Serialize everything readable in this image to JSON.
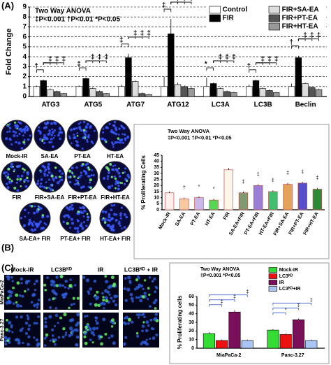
{
  "panel_labels": [
    "(A)",
    "(B)",
    "(C)"
  ],
  "chart_data": [
    {
      "type": "grouped_bar",
      "ylabel": "Fold Change",
      "annotation_title": "Two Way ANOVA",
      "annotation": "‡P<0.001 †P<0.01 *P<0.05",
      "categories": [
        "ATG3",
        "ATG5",
        "ATG7",
        "ATG12",
        "LC3A",
        "LC3B",
        "Beclin"
      ],
      "series": [
        {
          "name": "Control",
          "color": "#ffffff",
          "values": [
            1,
            1,
            1,
            1,
            1,
            1,
            1
          ],
          "errors": [
            0.1,
            0.1,
            0.2,
            1.0,
            0.9,
            0.2,
            0.3
          ]
        },
        {
          "name": "FIR",
          "color": "#000000",
          "values": [
            1.6,
            1.8,
            3.9,
            6.3,
            1.3,
            1.6,
            3.9
          ],
          "errors": [
            0.1,
            0.1,
            0.4,
            1.5,
            0.1,
            0.1,
            0.2
          ]
        },
        {
          "name": "FIR+SA-EA",
          "color": "#dddddd",
          "values": [
            0.7,
            0.8,
            1.5,
            1.2,
            0.8,
            0.8,
            1.3
          ],
          "errors": [
            0.1,
            0.1,
            0.1,
            0.2,
            0.1,
            0.1,
            0.1
          ]
        },
        {
          "name": "FIR+PT-EA",
          "color": "#555555",
          "values": [
            0.5,
            0.5,
            0.3,
            1.0,
            0.5,
            0.6,
            0.9
          ],
          "errors": [
            0.1,
            0.1,
            0.1,
            0.1,
            0.1,
            0.1,
            0.1
          ]
        },
        {
          "name": "FIR+HT-EA",
          "color": "#999999",
          "values": [
            0.3,
            0.3,
            0.2,
            0.8,
            0.4,
            0.4,
            0.7
          ],
          "errors": [
            0.05,
            0.05,
            0.05,
            0.1,
            0.05,
            0.05,
            0.1
          ]
        }
      ],
      "significance": [
        [
          "†",
          "‡",
          "‡",
          "‡"
        ],
        [
          "‡",
          "‡",
          "‡",
          "‡"
        ],
        [
          "‡",
          "‡",
          "‡",
          "‡"
        ],
        [
          "‡",
          "‡",
          "‡",
          "‡"
        ],
        [
          "*",
          "‡",
          "‡",
          "‡"
        ],
        [
          "†",
          "‡",
          "‡",
          "‡"
        ],
        [
          "†",
          "‡",
          "‡",
          "‡"
        ]
      ],
      "ylim": [
        0,
        9
      ],
      "yticks": [
        0,
        1,
        2,
        3,
        4,
        5,
        6,
        7,
        8,
        9
      ],
      "grid": true,
      "legend": "upper right",
      "legend_columns": 2
    },
    {
      "type": "bar",
      "ylabel": "% Proliferating Cells",
      "annotation_title": "Two Way ANOVA",
      "annotation": "‡P<0.001 †P<0.01 *P<0.05",
      "categories": [
        "Mock-IR",
        "SA-EA",
        "PT-EA",
        "HT-EA",
        "FIR",
        "SA-EA+FIR",
        "PT-EA+FIR",
        "HT-EA+FIR",
        "FIR+SA-EA",
        "FIR+PT-EA",
        "FIR+HT-EA"
      ],
      "values": [
        14,
        9,
        10,
        8,
        33,
        14,
        20,
        15,
        21,
        22,
        17
      ],
      "errors": [
        1,
        1,
        1,
        1,
        1.5,
        1,
        1,
        1,
        1,
        1,
        1
      ],
      "colors": [
        "#fff0ee",
        "#f8c9a0",
        "#c9b8e8",
        "#55d655",
        "#fff6ea",
        "#7f9a70",
        "#9b7fd6",
        "#3fbf6f",
        "#e4a25a",
        "#5a4fc8",
        "#2a8a3a"
      ],
      "markers": [
        null,
        "†",
        "*",
        "*",
        null,
        "‡",
        "‡",
        "‡",
        "‡",
        "‡",
        "‡"
      ],
      "ylim": [
        0,
        45
      ],
      "yticks": [
        0,
        5,
        10,
        15,
        20,
        25,
        30,
        35,
        40,
        45
      ],
      "grid": false
    },
    {
      "type": "grouped_bar",
      "ylabel": "% Proliferating cells",
      "annotation_title": "Two Way ANOVA",
      "annotation": "‡P<0.001 *P<0.05",
      "categories": [
        "MiaPaCa-2",
        "Panc-3.27"
      ],
      "series": [
        {
          "name": "Mock-IR",
          "color": "#33dd33",
          "values": [
            17,
            21
          ],
          "errors": [
            1.5,
            1
          ]
        },
        {
          "name": "LC3ᴷᴰ",
          "color": "#ee1111",
          "values": [
            9,
            16
          ],
          "errors": [
            1,
            1
          ]
        },
        {
          "name": "IR",
          "color": "#7a0f5a",
          "values": [
            42,
            33
          ],
          "errors": [
            2,
            1.5
          ]
        },
        {
          "name": "LC3ᴷᴰ+IR",
          "color": "#aac4f4",
          "values": [
            9,
            9
          ],
          "errors": [
            1,
            1
          ]
        }
      ],
      "significance": [
        [
          "‡",
          "‡",
          "‡"
        ],
        [
          "*",
          "‡",
          "‡"
        ]
      ],
      "ylim": [
        0,
        60
      ],
      "yticks": [
        0,
        10,
        20,
        30,
        40,
        50,
        60
      ],
      "grid": false,
      "legend": "upper right",
      "legend_columns": 1
    }
  ],
  "micrographs_b": {
    "labels": [
      "Mock-IR",
      "SA-EA",
      "PT-EA",
      "HT-EA",
      "FIR",
      "FIR+SA-EA",
      "FIR+PT-EA",
      "FIR+HT-EA",
      "SA-EA+ FIR",
      "PT-EA+ FIR",
      "HT-EA+ FIR"
    ]
  },
  "micrographs_c": {
    "column_labels": [
      "Mock-IR",
      "LC3Bᴷᴰ",
      "IR",
      "LC3Bᴷᴰ + IR"
    ],
    "row_labels": [
      "MiaPaCa-2",
      "Panc-3.27"
    ]
  }
}
